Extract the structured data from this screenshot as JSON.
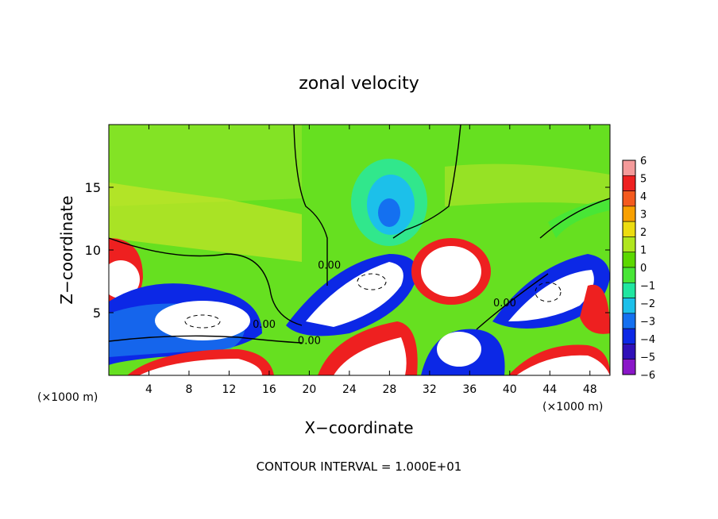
{
  "chart_data": {
    "type": "heatmap",
    "title": "zonal velocity",
    "xlabel": "X−coordinate",
    "ylabel": "Z−coordinate",
    "x_unit_left": "(×1000 m)",
    "x_unit_right": "(×1000 m)",
    "footer": "CONTOUR INTERVAL = 1.000E+01",
    "xlim": [
      0,
      50
    ],
    "ylim": [
      0,
      20
    ],
    "x_ticks": [
      4,
      8,
      12,
      16,
      20,
      24,
      28,
      32,
      36,
      40,
      44,
      48
    ],
    "y_ticks": [
      5,
      10,
      15
    ],
    "contour_labels": [
      {
        "text": "0.00",
        "x": 22,
        "y": 8.5
      },
      {
        "text": "0.00",
        "x": 15.5,
        "y": 3.8
      },
      {
        "text": "0.00",
        "x": 20,
        "y": 2.5
      },
      {
        "text": "0.00",
        "x": 39.5,
        "y": 5.5
      }
    ],
    "colorbar": {
      "ticks": [
        6,
        5,
        4,
        3,
        2,
        1,
        0,
        -1,
        -2,
        -3,
        -4,
        -5,
        -6
      ],
      "colors": [
        "#f49a9a",
        "#ee2020",
        "#f45a1e",
        "#f8a000",
        "#ecdc10",
        "#b0e61e",
        "#5cd800",
        "#48e636",
        "#20e6a0",
        "#1cc0ea",
        "#1470f0",
        "#0c28e6",
        "#3010b8",
        "#8a16c8"
      ]
    },
    "colors": {
      "background_field": "#66e020",
      "positive_strong": "#ffffff",
      "negative_strong": "#0c28e6"
    }
  }
}
